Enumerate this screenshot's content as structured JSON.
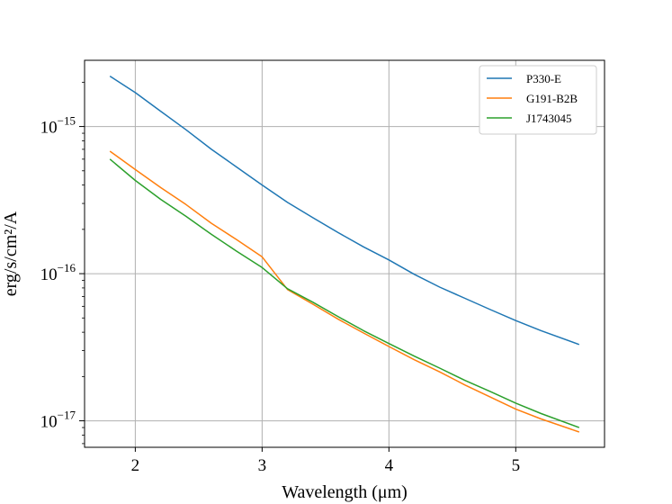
{
  "chart_data": {
    "type": "line",
    "title": "",
    "xlabel": "Wavelength (μm)",
    "ylabel": "erg/s/cm²/A",
    "xlim": [
      1.6,
      5.7
    ],
    "ylim_log10": [
      -17.18,
      -14.55
    ],
    "y_scale": "log",
    "grid": true,
    "legend_position": "top-right",
    "x_ticks": [
      {
        "value": 2,
        "label": "2"
      },
      {
        "value": 3,
        "label": "3"
      },
      {
        "value": 4,
        "label": "4"
      },
      {
        "value": 5,
        "label": "5"
      }
    ],
    "y_ticks": [
      {
        "log10": -15,
        "base": "10",
        "exp": "−15"
      },
      {
        "log10": -16,
        "base": "10",
        "exp": "−16"
      },
      {
        "log10": -17,
        "base": "10",
        "exp": "−17"
      }
    ],
    "series": [
      {
        "name": "P330-E",
        "color": "#1f77b4",
        "x": [
          1.8,
          2.0,
          2.2,
          2.4,
          2.6,
          2.8,
          3.0,
          3.2,
          3.4,
          3.6,
          3.8,
          4.0,
          4.2,
          4.4,
          4.6,
          4.8,
          5.0,
          5.2,
          5.5
        ],
        "y": [
          2.2e-15,
          1.7e-15,
          1.27e-15,
          9.5e-16,
          7e-16,
          5.3e-16,
          4e-16,
          3.05e-16,
          2.4e-16,
          1.9e-16,
          1.52e-16,
          1.24e-16,
          9.9e-17,
          8.1e-17,
          6.8e-17,
          5.7e-17,
          4.8e-17,
          4.1e-17,
          3.3e-17
        ]
      },
      {
        "name": "G191-B2B",
        "color": "#ff7f0e",
        "x": [
          1.8,
          2.0,
          2.2,
          2.4,
          2.6,
          2.8,
          3.0,
          3.2,
          3.4,
          3.6,
          3.8,
          4.0,
          4.2,
          4.4,
          4.6,
          4.8,
          5.0,
          5.2,
          5.5
        ],
        "y": [
          6.8e-16,
          5.1e-16,
          3.85e-16,
          2.95e-16,
          2.2e-16,
          1.7e-16,
          1.3e-16,
          7.8e-17,
          6.2e-17,
          4.9e-17,
          3.95e-17,
          3.2e-17,
          2.6e-17,
          2.15e-17,
          1.75e-17,
          1.45e-17,
          1.2e-17,
          1.03e-17,
          8.4e-18
        ]
      },
      {
        "name": "J1743045",
        "color": "#2ca02c",
        "x": [
          1.8,
          2.0,
          2.2,
          2.4,
          2.6,
          2.8,
          3.0,
          3.2,
          3.4,
          3.6,
          3.8,
          4.0,
          4.2,
          4.4,
          4.6,
          4.8,
          5.0,
          5.2,
          5.5
        ],
        "y": [
          6e-16,
          4.3e-16,
          3.2e-16,
          2.45e-16,
          1.85e-16,
          1.42e-16,
          1.1e-16,
          7.9e-17,
          6.4e-17,
          5.1e-17,
          4.1e-17,
          3.35e-17,
          2.75e-17,
          2.28e-17,
          1.88e-17,
          1.58e-17,
          1.32e-17,
          1.12e-17,
          9e-18
        ]
      }
    ]
  }
}
